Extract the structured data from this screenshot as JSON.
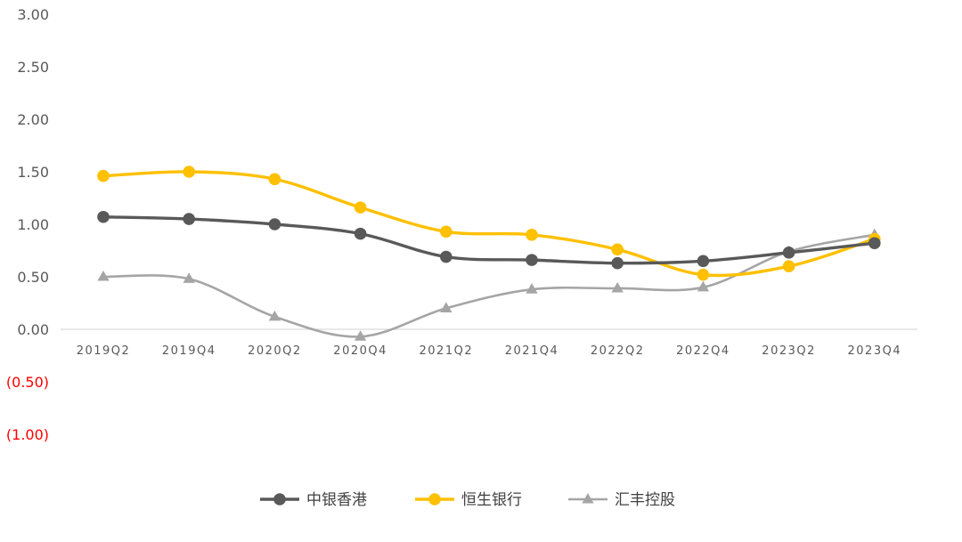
{
  "chart_data": {
    "type": "line",
    "title": "",
    "xlabel": "",
    "ylabel": "",
    "categories": [
      "2019Q2",
      "2019Q4",
      "2020Q2",
      "2020Q4",
      "2021Q2",
      "2021Q4",
      "2022Q2",
      "2022Q4",
      "2023Q2",
      "2023Q4"
    ],
    "ylim": [
      -1.0,
      3.0
    ],
    "y_ticks": [
      "3.00",
      "2.50",
      "2.00",
      "1.50",
      "1.00",
      "0.50",
      "0.00",
      "(0.50)",
      "(1.00)"
    ],
    "y_tick_values": [
      3.0,
      2.5,
      2.0,
      1.5,
      1.0,
      0.5,
      0.0,
      -0.5,
      -1.0
    ],
    "negative_tick_color": "#ff0000",
    "positive_tick_color": "#595959",
    "grid": false,
    "line_style": "smooth",
    "legend_position": "bottom",
    "series": [
      {
        "name": "中银香港",
        "color": "#595959",
        "marker": "circle",
        "values": [
          1.07,
          1.05,
          1.0,
          0.91,
          0.69,
          0.66,
          0.63,
          0.65,
          0.73,
          0.82
        ]
      },
      {
        "name": "恒生银行",
        "color": "#ffc000",
        "marker": "circle",
        "values": [
          1.46,
          1.5,
          1.43,
          1.16,
          0.93,
          0.9,
          0.76,
          0.52,
          0.6,
          0.86
        ]
      },
      {
        "name": "汇丰控股",
        "color": "#a5a5a5",
        "marker": "triangle",
        "values": [
          0.5,
          0.48,
          0.12,
          -0.07,
          0.2,
          0.38,
          0.39,
          0.4,
          0.74,
          0.9
        ]
      }
    ]
  }
}
